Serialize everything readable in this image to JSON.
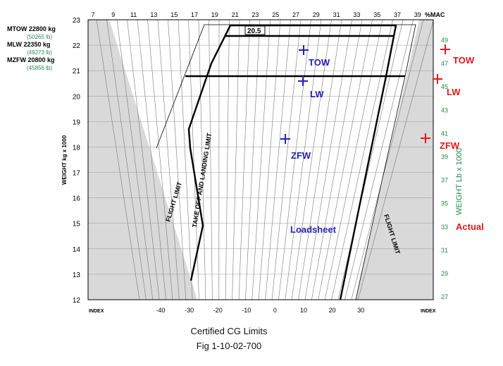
{
  "limits": [
    {
      "label": "MTOW 22800 kg",
      "sub": "(50265 lb)"
    },
    {
      "label": "MLW 22350 kg",
      "sub": "(49273 lb)"
    },
    {
      "label": "MZFW 20800 kg",
      "sub": "(45856 lb)"
    }
  ],
  "top_axis": {
    "ticks": [
      "7",
      "9",
      "11",
      "13",
      "15",
      "17",
      "19",
      "21",
      "23",
      "25",
      "27",
      "29",
      "31",
      "33",
      "35",
      "37",
      "39"
    ],
    "unit": "%MAC"
  },
  "left_axis": {
    "label": "WEIGHT kg x 1000",
    "ticks": [
      "23",
      "22",
      "21",
      "20",
      "19",
      "18",
      "17",
      "16",
      "15",
      "14",
      "13",
      "12"
    ]
  },
  "right_axis": {
    "label": "WEIGHT Lb x 1000",
    "ticks": [
      "49",
      "47",
      "45",
      "43",
      "41",
      "39",
      "37",
      "35",
      "33",
      "31",
      "29",
      "27"
    ]
  },
  "bottom_axis": {
    "index_left": "INDEX",
    "index_right": "INDEX",
    "ticks": [
      "-40",
      "-30",
      "-20",
      "-10",
      "0",
      "10",
      "20",
      "30"
    ]
  },
  "labels": {
    "mtow_note": "20.5",
    "flight_limit_left": "FLIGHT LIMIT",
    "flight_limit_right": "FLIGHT LIMIT",
    "takeoff_landing_limit": "TAKE OFF AND LANDING LIMIT"
  },
  "loadsheet": {
    "title": "Loadsheet",
    "points": [
      {
        "name": "TOW",
        "mac": 27.7,
        "weight": 21.85
      },
      {
        "name": "LW",
        "mac": 27.5,
        "weight": 20.6
      },
      {
        "name": "ZFW",
        "mac": 25.3,
        "weight": 18.35
      }
    ]
  },
  "actual": {
    "title": "Actual",
    "points": [
      {
        "name": "TOW"
      },
      {
        "name": "LW"
      },
      {
        "name": "ZFW"
      }
    ]
  },
  "colors": {
    "loadsheet": "#2323b8",
    "actual": "#e01818",
    "right_axis": "#1a8a4a",
    "shade": "#d9d9d9"
  },
  "caption": {
    "line1": "Certified CG Limits",
    "line2": "Fig 1-10-02-700"
  }
}
